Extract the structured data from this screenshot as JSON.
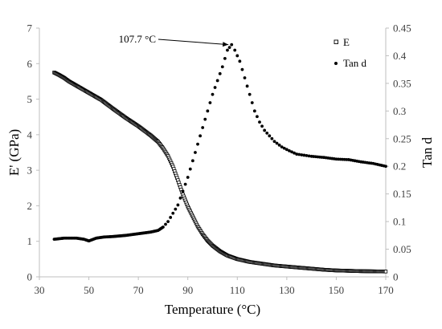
{
  "chart_data": {
    "type": "scatter",
    "x": {
      "label": "Temperature (°C)",
      "range": [
        30,
        170
      ],
      "ticks": [
        30,
        50,
        70,
        90,
        110,
        130,
        150,
        170
      ]
    },
    "y_left": {
      "label": "E' (GPa)",
      "range": [
        0,
        7
      ],
      "ticks": [
        0,
        1,
        2,
        3,
        4,
        5,
        6,
        7
      ]
    },
    "y_right": {
      "label": "Tan d",
      "range": [
        0,
        0.45
      ],
      "ticks": [
        "0",
        "0.05",
        "0.1",
        "0.15",
        "0.2",
        "0.25",
        "0.3",
        "0.35",
        "0.4",
        "0.45"
      ]
    },
    "grid": false,
    "legend_position": "top-right",
    "series": [
      {
        "name": "E",
        "axis": "left",
        "marker": "open-square",
        "color": "#000000",
        "points": [
          [
            36,
            5.75
          ],
          [
            38,
            5.68
          ],
          [
            40,
            5.6
          ],
          [
            42,
            5.5
          ],
          [
            45,
            5.38
          ],
          [
            50,
            5.18
          ],
          [
            55,
            4.98
          ],
          [
            60,
            4.72
          ],
          [
            65,
            4.47
          ],
          [
            70,
            4.24
          ],
          [
            75,
            3.98
          ],
          [
            78,
            3.8
          ],
          [
            80,
            3.62
          ],
          [
            82,
            3.4
          ],
          [
            84,
            3.1
          ],
          [
            86,
            2.72
          ],
          [
            88,
            2.32
          ],
          [
            90,
            1.98
          ],
          [
            92,
            1.7
          ],
          [
            94,
            1.42
          ],
          [
            96,
            1.2
          ],
          [
            98,
            1.02
          ],
          [
            100,
            0.88
          ],
          [
            103,
            0.72
          ],
          [
            106,
            0.6
          ],
          [
            110,
            0.5
          ],
          [
            115,
            0.42
          ],
          [
            120,
            0.37
          ],
          [
            125,
            0.32
          ],
          [
            130,
            0.29
          ],
          [
            135,
            0.26
          ],
          [
            140,
            0.23
          ],
          [
            145,
            0.2
          ],
          [
            150,
            0.18
          ],
          [
            160,
            0.16
          ],
          [
            170,
            0.15
          ]
        ]
      },
      {
        "name": "Tan d",
        "axis": "right",
        "marker": "filled-dot",
        "color": "#000000",
        "points": [
          [
            36,
            0.068
          ],
          [
            40,
            0.07
          ],
          [
            45,
            0.07
          ],
          [
            48,
            0.068
          ],
          [
            50,
            0.065
          ],
          [
            53,
            0.07
          ],
          [
            56,
            0.072
          ],
          [
            60,
            0.073
          ],
          [
            65,
            0.075
          ],
          [
            70,
            0.078
          ],
          [
            75,
            0.081
          ],
          [
            78,
            0.084
          ],
          [
            80,
            0.09
          ],
          [
            82,
            0.1
          ],
          [
            84,
            0.115
          ],
          [
            86,
            0.13
          ],
          [
            88,
            0.155
          ],
          [
            90,
            0.18
          ],
          [
            92,
            0.21
          ],
          [
            94,
            0.24
          ],
          [
            96,
            0.27
          ],
          [
            98,
            0.3
          ],
          [
            100,
            0.33
          ],
          [
            102,
            0.355
          ],
          [
            104,
            0.38
          ],
          [
            106,
            0.41
          ],
          [
            107.7,
            0.42
          ],
          [
            109,
            0.41
          ],
          [
            111,
            0.39
          ],
          [
            113,
            0.36
          ],
          [
            115,
            0.33
          ],
          [
            117,
            0.3
          ],
          [
            119,
            0.28
          ],
          [
            121,
            0.265
          ],
          [
            123,
            0.255
          ],
          [
            125,
            0.245
          ],
          [
            128,
            0.235
          ],
          [
            131,
            0.228
          ],
          [
            134,
            0.222
          ],
          [
            137,
            0.22
          ],
          [
            140,
            0.218
          ],
          [
            145,
            0.216
          ],
          [
            150,
            0.213
          ],
          [
            155,
            0.212
          ],
          [
            160,
            0.208
          ],
          [
            165,
            0.205
          ],
          [
            170,
            0.2
          ]
        ]
      }
    ],
    "annotations": [
      {
        "text": "107.7 °C",
        "points_to": [
          107.7,
          0.42
        ],
        "axis": "right"
      }
    ]
  }
}
